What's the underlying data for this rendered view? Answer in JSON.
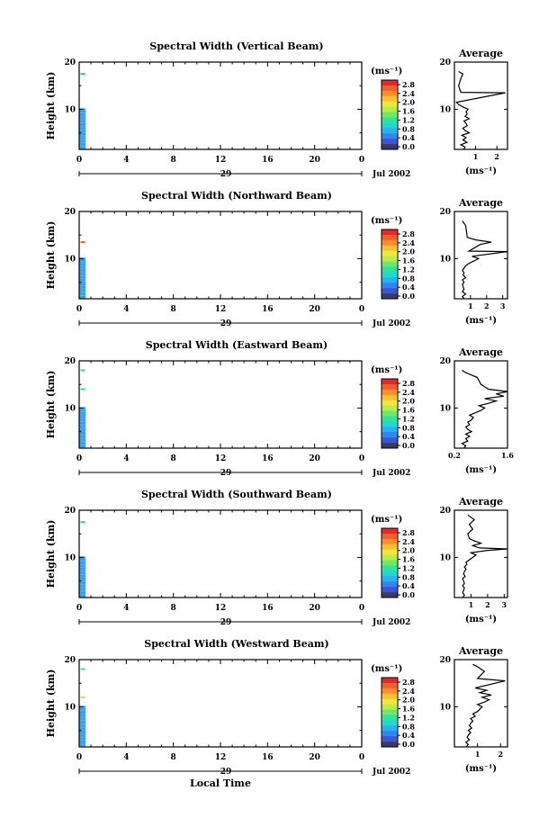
{
  "figure": {
    "xlabel": "Local Time",
    "height_label": "Height (km)",
    "unit_label": "(ms⁻¹)",
    "avg_title": "Average",
    "avg_unit": "(ms⁻¹)",
    "month_label": "Jul 2002"
  },
  "colorbar": {
    "ticks": [
      "0.0",
      "0.4",
      "0.8",
      "1.2",
      "1.6",
      "2.0",
      "2.4",
      "2.8"
    ],
    "colors": [
      "#3a3a6a",
      "#3b55d8",
      "#2f86ef",
      "#25b2f0",
      "#22d7d0",
      "#2ee39a",
      "#6fe86a",
      "#b6ee48",
      "#eee83a",
      "#f9c030",
      "#f89028",
      "#f26028",
      "#e22a28"
    ]
  },
  "chart_data": [
    {
      "type": "heatmap",
      "title": "Spectral Width (Vertical Beam)",
      "xlabel": "",
      "ylabel": "Height (km)",
      "xlim": [
        0,
        24
      ],
      "ylim": [
        1.5,
        20
      ],
      "x_ticks": [
        "0",
        "4",
        "8",
        "12",
        "16",
        "20",
        "0"
      ],
      "y_ticks": [
        "20",
        "10"
      ],
      "day_label": "29",
      "data_extent": {
        "time": [
          0,
          0.5
        ],
        "height": [
          1.5,
          10.2
        ]
      },
      "value_levels": [
        0.4,
        0.6
      ],
      "scattered_cells": [
        {
          "time": 0.2,
          "height": 17.5,
          "value": 0.6
        }
      ],
      "average": {
        "xlim": [
          0,
          2.5
        ],
        "x_ticks": [
          "1",
          "2"
        ],
        "y_ticks": [
          "20",
          "10"
        ],
        "profile": [
          [
            1.5,
            0.45
          ],
          [
            2,
            0.5
          ],
          [
            2.5,
            0.3
          ],
          [
            3,
            0.6
          ],
          [
            3.5,
            0.4
          ],
          [
            4,
            0.55
          ],
          [
            4.5,
            0.35
          ],
          [
            5,
            0.7
          ],
          [
            5.5,
            0.5
          ],
          [
            6,
            0.4
          ],
          [
            6.5,
            0.6
          ],
          [
            7,
            0.55
          ],
          [
            7.5,
            0.45
          ],
          [
            8,
            0.7
          ],
          [
            8.5,
            0.5
          ],
          [
            9,
            0.6
          ],
          [
            9.5,
            0.55
          ],
          [
            10,
            0.65
          ],
          [
            10.5,
            0.4
          ],
          [
            11,
            0.2
          ],
          [
            11.5,
            0.1
          ],
          [
            13.5,
            2.4
          ],
          [
            13.6,
            0.3
          ],
          [
            15,
            0.2
          ],
          [
            16.5,
            0.3
          ],
          [
            17.5,
            0.4
          ],
          [
            18,
            0.2
          ]
        ]
      }
    },
    {
      "type": "heatmap",
      "title": "Spectral Width (Northward Beam)",
      "xlabel": "",
      "ylabel": "Height (km)",
      "xlim": [
        0,
        24
      ],
      "ylim": [
        1.5,
        20
      ],
      "x_ticks": [
        "0",
        "4",
        "8",
        "12",
        "16",
        "20",
        "0"
      ],
      "y_ticks": [
        "20",
        "10"
      ],
      "day_label": "29",
      "data_extent": {
        "time": [
          0,
          0.5
        ],
        "height": [
          1.5,
          10.2
        ]
      },
      "value_levels": [
        0.4,
        0.6
      ],
      "scattered_cells": [
        {
          "time": 0.2,
          "height": 13.5,
          "value": 2.6
        }
      ],
      "average": {
        "xlim": [
          0,
          3.3
        ],
        "x_ticks": [
          "1",
          "2",
          "3"
        ],
        "y_ticks": [
          "20",
          "10"
        ],
        "profile": [
          [
            1.5,
            0.6
          ],
          [
            2,
            0.5
          ],
          [
            2.5,
            0.7
          ],
          [
            3,
            0.5
          ],
          [
            3.5,
            0.6
          ],
          [
            4,
            0.55
          ],
          [
            4.5,
            0.5
          ],
          [
            5,
            0.6
          ],
          [
            5.5,
            0.5
          ],
          [
            6,
            0.7
          ],
          [
            6.5,
            0.55
          ],
          [
            7,
            0.6
          ],
          [
            7.5,
            0.5
          ],
          [
            8,
            0.6
          ],
          [
            8.5,
            0.7
          ],
          [
            9,
            0.9
          ],
          [
            9.5,
            1.2
          ],
          [
            10,
            1.5
          ],
          [
            10.5,
            1.1
          ],
          [
            11.5,
            3.3
          ],
          [
            11.6,
            0.9
          ],
          [
            13,
            1.6
          ],
          [
            13.5,
            2.3
          ],
          [
            14,
            1.3
          ],
          [
            14.5,
            0.8
          ],
          [
            17,
            0.7
          ],
          [
            18,
            0.5
          ]
        ]
      }
    },
    {
      "type": "heatmap",
      "title": "Spectral Width (Eastward Beam)",
      "xlabel": "",
      "ylabel": "Height (km)",
      "xlim": [
        0,
        24
      ],
      "ylim": [
        1.5,
        20
      ],
      "x_ticks": [
        "0",
        "4",
        "8",
        "12",
        "16",
        "20",
        "0"
      ],
      "y_ticks": [
        "20",
        "10"
      ],
      "day_label": "29",
      "data_extent": {
        "time": [
          0,
          0.5
        ],
        "height": [
          1.5,
          10.2
        ]
      },
      "value_levels": [
        0.4,
        0.6
      ],
      "scattered_cells": [
        {
          "time": 0.2,
          "height": 18.0,
          "value": 0.8
        },
        {
          "time": 0.2,
          "height": 14.0,
          "value": 1.2
        }
      ],
      "average": {
        "xlim": [
          0.2,
          1.6
        ],
        "x_ticks": [
          "0.2",
          "1.6"
        ],
        "y_ticks": [
          "20",
          "10"
        ],
        "profile": [
          [
            1.5,
            0.45
          ],
          [
            2,
            0.5
          ],
          [
            2.5,
            0.4
          ],
          [
            3,
            0.55
          ],
          [
            3.5,
            0.5
          ],
          [
            4,
            0.6
          ],
          [
            4.5,
            0.5
          ],
          [
            5,
            0.65
          ],
          [
            5.5,
            0.55
          ],
          [
            6,
            0.5
          ],
          [
            6.5,
            0.6
          ],
          [
            7,
            0.55
          ],
          [
            7.5,
            0.65
          ],
          [
            8,
            0.7
          ],
          [
            8.5,
            0.6
          ],
          [
            9,
            0.75
          ],
          [
            9.5,
            0.9
          ],
          [
            10,
            1.0
          ],
          [
            10.5,
            0.85
          ],
          [
            11,
            1.1
          ],
          [
            11.5,
            1.3
          ],
          [
            12,
            1.0
          ],
          [
            12.5,
            1.5
          ],
          [
            13,
            1.3
          ],
          [
            13.5,
            1.6
          ],
          [
            14,
            1.1
          ],
          [
            15,
            0.9
          ],
          [
            16.5,
            0.8
          ],
          [
            17.5,
            0.5
          ],
          [
            18,
            0.4
          ]
        ]
      }
    },
    {
      "type": "heatmap",
      "title": "Spectral Width (Southward Beam)",
      "xlabel": "",
      "ylabel": "Height (km)",
      "xlim": [
        0,
        24
      ],
      "ylim": [
        1.5,
        20
      ],
      "x_ticks": [
        "0",
        "4",
        "8",
        "12",
        "16",
        "20",
        "0"
      ],
      "y_ticks": [
        "20",
        "10"
      ],
      "day_label": "29",
      "data_extent": {
        "time": [
          0,
          0.5
        ],
        "height": [
          1.5,
          10.2
        ]
      },
      "value_levels": [
        0.4,
        0.6
      ],
      "scattered_cells": [
        {
          "time": 0.2,
          "height": 17.5,
          "value": 0.8
        }
      ],
      "average": {
        "xlim": [
          0,
          3.2
        ],
        "x_ticks": [
          "1",
          "2",
          "3"
        ],
        "y_ticks": [
          "20",
          "10"
        ],
        "profile": [
          [
            1.5,
            0.5
          ],
          [
            2,
            0.6
          ],
          [
            2.5,
            0.5
          ],
          [
            3,
            0.55
          ],
          [
            3.5,
            0.6
          ],
          [
            4,
            0.5
          ],
          [
            4.5,
            0.6
          ],
          [
            5,
            0.55
          ],
          [
            5.5,
            0.5
          ],
          [
            6,
            0.65
          ],
          [
            6.5,
            0.55
          ],
          [
            7,
            0.6
          ],
          [
            7.5,
            0.7
          ],
          [
            8,
            0.6
          ],
          [
            8.5,
            0.75
          ],
          [
            9,
            0.7
          ],
          [
            9.5,
            0.9
          ],
          [
            10,
            1.1
          ],
          [
            10.5,
            1.3
          ],
          [
            11,
            1.0
          ],
          [
            11.5,
            2.0
          ],
          [
            11.8,
            3.2
          ],
          [
            12,
            1.5
          ],
          [
            12.5,
            1.1
          ],
          [
            13,
            1.6
          ],
          [
            13.5,
            1.2
          ],
          [
            14,
            0.9
          ],
          [
            15,
            0.8
          ],
          [
            16,
            1.1
          ],
          [
            17,
            0.9
          ],
          [
            18,
            1.2
          ],
          [
            19,
            0.8
          ]
        ]
      }
    },
    {
      "type": "heatmap",
      "title": "Spectral Width (Westward Beam)",
      "xlabel": "Local Time",
      "ylabel": "Height (km)",
      "xlim": [
        0,
        24
      ],
      "ylim": [
        1.5,
        20
      ],
      "x_ticks": [
        "0",
        "4",
        "8",
        "12",
        "16",
        "20",
        "0"
      ],
      "y_ticks": [
        "20",
        "10"
      ],
      "day_label": "29",
      "data_extent": {
        "time": [
          0,
          0.5
        ],
        "height": [
          1.5,
          10.2
        ]
      },
      "value_levels": [
        0.4,
        0.6
      ],
      "scattered_cells": [
        {
          "time": 0.2,
          "height": 18.0,
          "value": 1.2
        },
        {
          "time": 0.2,
          "height": 12.0,
          "value": 1.6
        }
      ],
      "average": {
        "xlim": [
          0,
          2.3
        ],
        "x_ticks": [
          "1",
          "2"
        ],
        "y_ticks": [
          "20",
          "10"
        ],
        "profile": [
          [
            1.5,
            0.5
          ],
          [
            2,
            0.6
          ],
          [
            2.5,
            0.5
          ],
          [
            3,
            0.65
          ],
          [
            3.5,
            0.55
          ],
          [
            4,
            0.6
          ],
          [
            4.5,
            0.7
          ],
          [
            5,
            0.6
          ],
          [
            5.5,
            0.75
          ],
          [
            6,
            0.65
          ],
          [
            6.5,
            0.7
          ],
          [
            7,
            0.8
          ],
          [
            7.5,
            0.7
          ],
          [
            8,
            0.9
          ],
          [
            8.5,
            0.8
          ],
          [
            9,
            1.0
          ],
          [
            9.5,
            1.1
          ],
          [
            10,
            1.2
          ],
          [
            10.5,
            1.0
          ],
          [
            11,
            1.3
          ],
          [
            11.5,
            1.5
          ],
          [
            12,
            1.2
          ],
          [
            12.5,
            1.6
          ],
          [
            13,
            1.1
          ],
          [
            13.5,
            1.4
          ],
          [
            14,
            0.9
          ],
          [
            15.5,
            2.2
          ],
          [
            16,
            1.0
          ],
          [
            17.5,
            1.3
          ],
          [
            18.5,
            1.0
          ],
          [
            19,
            0.8
          ]
        ]
      }
    }
  ]
}
